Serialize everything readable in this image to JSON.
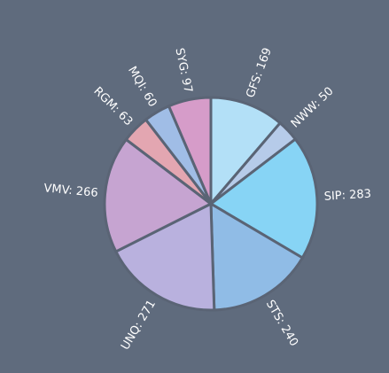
{
  "chart_data": {
    "type": "pie",
    "values": [
      169,
      50,
      283,
      240,
      271,
      266,
      63,
      60,
      97
    ],
    "value_labels": [
      "GFS: 169",
      "NWW: 50",
      "SIP: 283",
      "STS: 240",
      "UNQ: 271",
      "VMV: 266",
      "RGM: 63",
      "MQI: 60",
      "SYG: 97"
    ],
    "colors": [
      "#b3e0f7",
      "#b6cbe9",
      "#87d4f5",
      "#90bce6",
      "#b9b1de",
      "#c6a4d1",
      "#e3a6b1",
      "#a0bde6",
      "#d69cc9"
    ]
  }
}
